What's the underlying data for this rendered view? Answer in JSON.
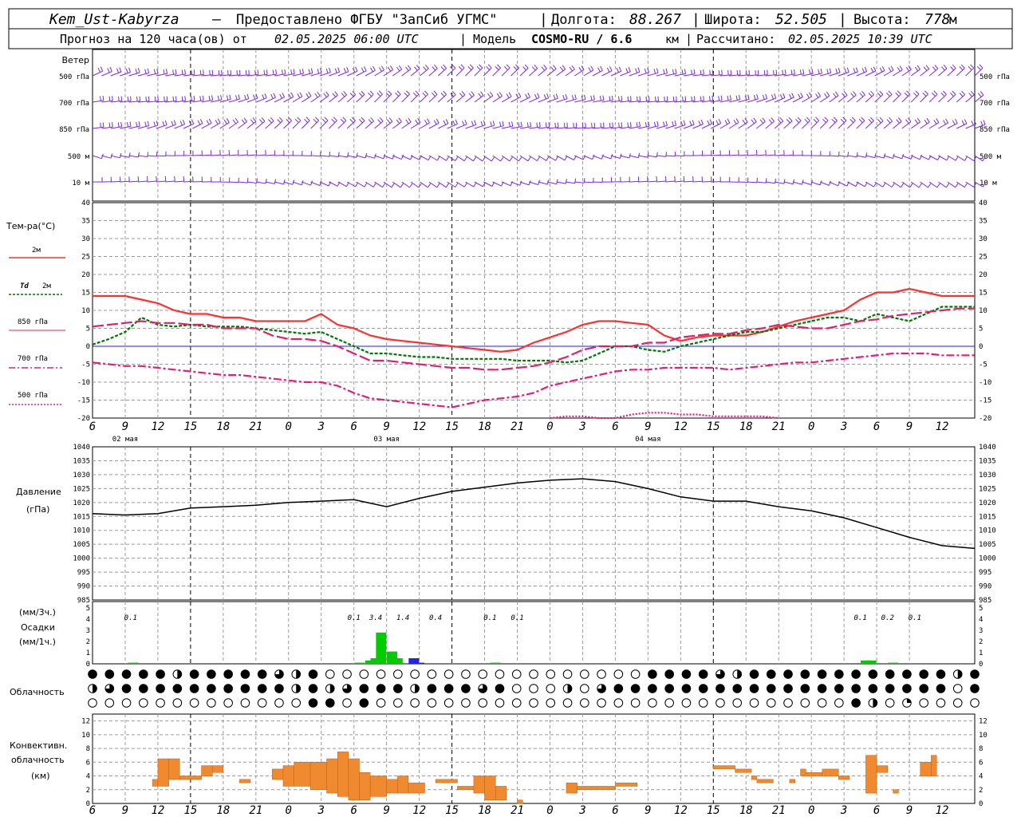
{
  "header": {
    "station": "Kem_Ust-Kabyrza",
    "provider": "Предоставлено ФГБУ \"ЗапСиб УГМС\"",
    "lon_label": "Долгота:",
    "lon_value": "88.267",
    "lat_label": "Широта:",
    "lat_value": "52.505",
    "alt_label": "Высота:",
    "alt_value": "778",
    "alt_unit": "м",
    "forecast_text": "Прогноз на 120 часа(ов) от",
    "forecast_time": "02.05.2025 06:00 UTC",
    "model_label": "Модель",
    "model_name": "COSMO-RU / 6.6",
    "model_unit": "км",
    "calc_label": "Рассчитано:",
    "calc_time": "02.05.2025 10:39 UTC"
  },
  "colors": {
    "t2m": "#ff3030",
    "td2m": "#007700",
    "t850": "#e0206a",
    "t700": "#e0207a",
    "t500": "#e02080",
    "wind": "#7a2adf",
    "precip_green": "#00cc00",
    "precip_blue": "#2222ee",
    "convective": "#f08a30",
    "zero_line": "#2020cc"
  },
  "x_ticks": [
    "6",
    "9",
    "12",
    "15",
    "18",
    "21",
    "0",
    "3",
    "6",
    "9",
    "12",
    "15",
    "18",
    "21",
    "0",
    "3",
    "6",
    "9",
    "12",
    "15",
    "18",
    "21",
    "0",
    "3",
    "6",
    "9",
    "12"
  ],
  "day_labels": [
    "02 мая",
    "03 мая",
    "04 мая"
  ],
  "wind_panel": {
    "title": "Ветер",
    "levels": [
      "500 гПа",
      "700 гПа",
      "850 гПа",
      "500 м",
      "10 м"
    ]
  },
  "temp_panel": {
    "title": "Тем-ра(°C)",
    "legend": [
      {
        "key": "t2m",
        "label": "2м",
        "style": "solid"
      },
      {
        "key": "td2m",
        "prefix": "Td",
        "label": "2м",
        "style": "dashed"
      },
      {
        "key": "t850",
        "label": "850 гПа",
        "style": "solid-thin"
      },
      {
        "key": "t700",
        "label": "700 гПа",
        "style": "dashdot"
      },
      {
        "key": "t500",
        "label": "500 гПа",
        "style": "dotted"
      }
    ],
    "y_ticks": [
      "40",
      "35",
      "30",
      "25",
      "20",
      "15",
      "10",
      "5",
      "0",
      "-5",
      "-10",
      "-15",
      "-20"
    ]
  },
  "pressure_panel": {
    "title": "Давление",
    "unit": "(гПа)",
    "y_ticks": [
      "1040",
      "1035",
      "1030",
      "1025",
      "1020",
      "1015",
      "1010",
      "1005",
      "1000",
      "995",
      "990",
      "985"
    ]
  },
  "precip_panel": {
    "unit_top": "(мм/3ч.)",
    "title": "Осадки",
    "unit_bottom": "(мм/1ч.)",
    "y_ticks": [
      "5",
      "4",
      "3",
      "2",
      "1",
      "0"
    ],
    "amount_labels": [
      {
        "t": 7,
        "text": "0.1"
      },
      {
        "t": 48,
        "text": "0.1"
      },
      {
        "t": 52,
        "text": "3.4"
      },
      {
        "t": 57,
        "text": "1.4"
      },
      {
        "t": 63,
        "text": "0.4"
      },
      {
        "t": 73,
        "text": "0.1"
      },
      {
        "t": 78,
        "text": "0.1"
      },
      {
        "t": 141,
        "text": "0.1"
      },
      {
        "t": 146,
        "text": "0.2"
      },
      {
        "t": 151,
        "text": "0.1"
      }
    ]
  },
  "cloud_panel": {
    "title": "Облачность"
  },
  "conv_panel": {
    "title_1": "Конвективн.",
    "title_2": "облачность",
    "unit": "(км)",
    "y_ticks": [
      "12",
      "10",
      "8",
      "6",
      "4",
      "2",
      "0"
    ]
  },
  "chart_data": [
    {
      "type": "line",
      "name": "temperature",
      "x_hours_from_start": [
        0,
        3,
        6,
        9,
        12,
        15,
        18,
        21,
        24,
        27,
        30,
        33,
        36,
        39,
        42,
        45,
        48,
        51,
        54,
        57,
        60,
        63,
        66,
        69,
        72,
        75,
        78,
        81,
        84,
        87,
        90,
        93,
        96,
        99,
        102,
        105,
        108,
        111,
        114,
        117,
        120,
        123,
        126,
        129,
        132,
        135,
        138,
        141,
        144,
        147,
        150,
        153,
        156,
        159,
        162
      ],
      "ylim": [
        -20,
        40
      ],
      "series": [
        {
          "name": "2м",
          "values": [
            14,
            14,
            14,
            13,
            12,
            10,
            9,
            9,
            8,
            8,
            7,
            7,
            7,
            7,
            9,
            6,
            5,
            3,
            2,
            1.5,
            1,
            0.5,
            0,
            -0.5,
            -1,
            -1.5,
            -1,
            1,
            2.5,
            4,
            6,
            7,
            7,
            6.5,
            6,
            3,
            1.5,
            2.5,
            3,
            3,
            3,
            4,
            5.5,
            7,
            8,
            9,
            10,
            13,
            15,
            15,
            16,
            15,
            14,
            14,
            14
          ]
        },
        {
          "name": "Td 2м",
          "values": [
            0.5,
            2,
            4,
            8,
            6,
            5.5,
            6,
            5.5,
            5.5,
            5.5,
            5,
            4.5,
            4,
            3.5,
            4,
            2,
            0,
            -2,
            -2,
            -2.5,
            -3,
            -3,
            -3.5,
            -3.5,
            -3.5,
            -3.5,
            -4,
            -4,
            -4,
            -4.5,
            -4,
            -2,
            0,
            0,
            -1,
            -1.5,
            0,
            1,
            2,
            3,
            4,
            4,
            5,
            6,
            7,
            8,
            8,
            7,
            9,
            8,
            7,
            9,
            11,
            11,
            11
          ]
        },
        {
          "name": "850 гПа",
          "values": [
            5.5,
            6,
            6.5,
            7,
            6.5,
            6.5,
            6,
            6,
            5,
            5,
            5,
            3,
            2,
            2,
            1.5,
            0,
            -2,
            -4,
            -4,
            -4.5,
            -5,
            -5.5,
            -6,
            -6,
            -6.5,
            -6.5,
            -6,
            -5.5,
            -4.5,
            -3,
            -1,
            0,
            0,
            0,
            1,
            1,
            2.5,
            3,
            3.5,
            3.5,
            4.5,
            5,
            6,
            5.5,
            5,
            5,
            6,
            7,
            7.5,
            8.5,
            9,
            9.5,
            10,
            10.5,
            10.5
          ]
        },
        {
          "name": "700 гПа",
          "values": [
            -4.5,
            -5,
            -5.5,
            -5.5,
            -6,
            -6.5,
            -7,
            -7.5,
            -8,
            -8,
            -8.5,
            -9,
            -9.5,
            -10,
            -10,
            -11,
            -13,
            -14.5,
            -15,
            -15.5,
            -16,
            -16.5,
            -17,
            -16,
            -15,
            -14.5,
            -14,
            -13,
            -11,
            -10,
            -9,
            -8,
            -7,
            -6.5,
            -6.5,
            -6,
            -6,
            -6,
            -6,
            -6.5,
            -6,
            -5.5,
            -5,
            -4.5,
            -4.5,
            -4,
            -3.5,
            -3,
            -2.5,
            -2,
            -2,
            -2,
            -2.5,
            -2.5,
            -2.5
          ]
        },
        {
          "name": "500 гПа",
          "values": [
            null,
            null,
            null,
            null,
            null,
            null,
            null,
            null,
            null,
            null,
            null,
            null,
            null,
            null,
            null,
            null,
            null,
            null,
            null,
            null,
            null,
            null,
            null,
            null,
            null,
            null,
            null,
            null,
            -20,
            -19.5,
            -19.5,
            -20,
            -20,
            -19,
            -18.5,
            -18.5,
            -19,
            -19,
            -19.5,
            -19.5,
            -19.5,
            -19.5,
            -20,
            null,
            null,
            null,
            null,
            null,
            null,
            null,
            null,
            null,
            null,
            null,
            null
          ]
        }
      ]
    },
    {
      "type": "line",
      "name": "pressure",
      "x_hours_from_start": [
        0,
        6,
        12,
        18,
        24,
        30,
        36,
        42,
        48,
        54,
        60,
        66,
        72,
        78,
        84,
        90,
        96,
        102,
        108,
        114,
        120,
        126,
        132,
        138,
        144,
        150,
        156,
        162
      ],
      "ylim": [
        985,
        1040
      ],
      "values": [
        1016,
        1015.5,
        1016,
        1018,
        1018.5,
        1019,
        1020,
        1020.5,
        1021,
        1018.5,
        1021.5,
        1024,
        1025.5,
        1027,
        1028,
        1028.5,
        1027.5,
        1025,
        1022,
        1020.5,
        1020.5,
        1018.5,
        1017,
        1014.5,
        1011,
        1007.5,
        1004.5,
        1003.5
      ]
    },
    {
      "type": "bar",
      "name": "precipitation",
      "unit": "мм/1ч.",
      "ylim": [
        0,
        5
      ],
      "values": [
        {
          "t": 7.5,
          "v": 0.1,
          "color": "green"
        },
        {
          "t": 49,
          "v": 0.1,
          "color": "green"
        },
        {
          "t": 51,
          "v": 0.3,
          "color": "green"
        },
        {
          "t": 52,
          "v": 0.5,
          "color": "green"
        },
        {
          "t": 53,
          "v": 2.8,
          "color": "green"
        },
        {
          "t": 55,
          "v": 1.1,
          "color": "green"
        },
        {
          "t": 56,
          "v": 0.5,
          "color": "green"
        },
        {
          "t": 59,
          "v": 0.5,
          "color": "blue"
        },
        {
          "t": 60,
          "v": 0.1,
          "color": "blue"
        },
        {
          "t": 74,
          "v": 0.1,
          "color": "green"
        },
        {
          "t": 142,
          "v": 0.3,
          "color": "green"
        },
        {
          "t": 143,
          "v": 0.3,
          "color": "green"
        },
        {
          "t": 147,
          "v": 0.1,
          "color": "green"
        }
      ]
    },
    {
      "type": "bar",
      "name": "convective_cloud",
      "unit": "км",
      "ylim": [
        0,
        13
      ],
      "values": [
        {
          "t0": 11,
          "t1": 12,
          "lo": 2.5,
          "hi": 3.5
        },
        {
          "t0": 12,
          "t1": 14,
          "lo": 2.5,
          "hi": 6.5
        },
        {
          "t0": 14,
          "t1": 16,
          "lo": 3.5,
          "hi": 6.5
        },
        {
          "t0": 16,
          "t1": 20,
          "lo": 3.5,
          "hi": 4
        },
        {
          "t0": 20,
          "t1": 22,
          "lo": 4,
          "hi": 5.5
        },
        {
          "t0": 22,
          "t1": 24,
          "lo": 4.5,
          "hi": 5.5
        },
        {
          "t0": 27,
          "t1": 29,
          "lo": 3,
          "hi": 3.5
        },
        {
          "t0": 33,
          "t1": 35,
          "lo": 3.5,
          "hi": 5
        },
        {
          "t0": 35,
          "t1": 37,
          "lo": 2.5,
          "hi": 5.5
        },
        {
          "t0": 37,
          "t1": 40,
          "lo": 2.5,
          "hi": 6
        },
        {
          "t0": 40,
          "t1": 43,
          "lo": 2,
          "hi": 6
        },
        {
          "t0": 43,
          "t1": 45,
          "lo": 1.5,
          "hi": 6.5
        },
        {
          "t0": 45,
          "t1": 47,
          "lo": 1,
          "hi": 7.5
        },
        {
          "t0": 47,
          "t1": 49,
          "lo": 0.5,
          "hi": 6.5
        },
        {
          "t0": 49,
          "t1": 51,
          "lo": 0.5,
          "hi": 4.5
        },
        {
          "t0": 51,
          "t1": 54,
          "lo": 1,
          "hi": 4
        },
        {
          "t0": 54,
          "t1": 56,
          "lo": 1.5,
          "hi": 3.5
        },
        {
          "t0": 56,
          "t1": 58,
          "lo": 1.5,
          "hi": 4
        },
        {
          "t0": 58,
          "t1": 61,
          "lo": 1.5,
          "hi": 3
        },
        {
          "t0": 63,
          "t1": 67,
          "lo": 3,
          "hi": 3.5
        },
        {
          "t0": 67,
          "t1": 70,
          "lo": 2,
          "hi": 2.5
        },
        {
          "t0": 70,
          "t1": 72,
          "lo": 1.5,
          "hi": 4
        },
        {
          "t0": 72,
          "t1": 74,
          "lo": 0.5,
          "hi": 4
        },
        {
          "t0": 74,
          "t1": 76,
          "lo": 0.5,
          "hi": 2.5
        },
        {
          "t0": 78,
          "t1": 79,
          "lo": 0,
          "hi": 0.5
        },
        {
          "t0": 87,
          "t1": 89,
          "lo": 1.5,
          "hi": 3
        },
        {
          "t0": 89,
          "t1": 96,
          "lo": 2,
          "hi": 2.5
        },
        {
          "t0": 96,
          "t1": 100,
          "lo": 2.5,
          "hi": 3
        },
        {
          "t0": 114,
          "t1": 118,
          "lo": 5,
          "hi": 5.5
        },
        {
          "t0": 118,
          "t1": 121,
          "lo": 4.5,
          "hi": 5
        },
        {
          "t0": 121,
          "t1": 122,
          "lo": 3.5,
          "hi": 4
        },
        {
          "t0": 122,
          "t1": 125,
          "lo": 3,
          "hi": 3.5
        },
        {
          "t0": 128,
          "t1": 129,
          "lo": 3,
          "hi": 3.5
        },
        {
          "t0": 130,
          "t1": 131,
          "lo": 4,
          "hi": 5
        },
        {
          "t0": 131,
          "t1": 134,
          "lo": 4,
          "hi": 4.5
        },
        {
          "t0": 134,
          "t1": 137,
          "lo": 4,
          "hi": 5
        },
        {
          "t0": 137,
          "t1": 139,
          "lo": 3.5,
          "hi": 4
        },
        {
          "t0": 142,
          "t1": 144,
          "lo": 1.5,
          "hi": 7
        },
        {
          "t0": 144,
          "t1": 146,
          "lo": 4.5,
          "hi": 5.5
        },
        {
          "t0": 147,
          "t1": 148,
          "lo": 1.5,
          "hi": 2
        },
        {
          "t0": 152,
          "t1": 154,
          "lo": 4,
          "hi": 6
        },
        {
          "t0": 154,
          "t1": 155,
          "lo": 4,
          "hi": 7
        }
      ]
    }
  ]
}
